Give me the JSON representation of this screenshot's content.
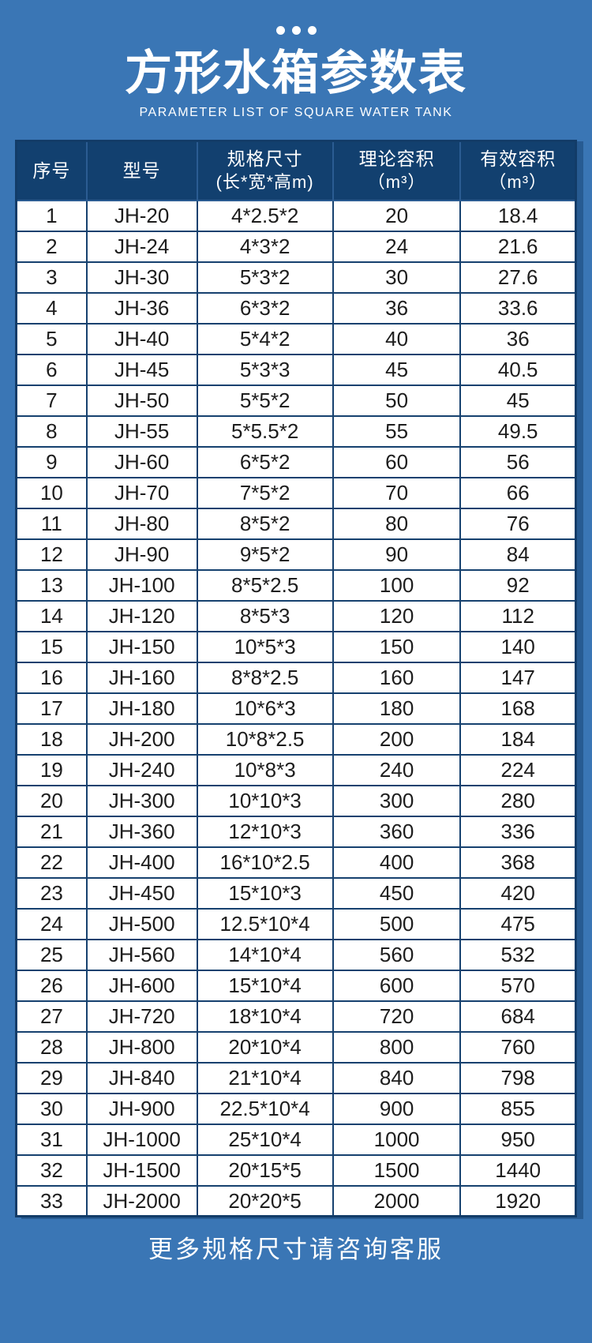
{
  "colors": {
    "page_bg": "#3a76b5",
    "table_header_bg": "#12406f",
    "grid_line": "#16416f",
    "header_grid_line": "#2b5c92",
    "outer_border": "#123c68",
    "cell_bg": "#ffffff",
    "text_light": "#ffffff",
    "text_dark": "#1d1d1d"
  },
  "header": {
    "dots_icon": "three-dots-icon",
    "title": "方形水箱参数表",
    "subtitle": "PARAMETER LIST OF SQUARE WATER TANK"
  },
  "table": {
    "columns": [
      {
        "label": "序号",
        "sub": ""
      },
      {
        "label": "型号",
        "sub": ""
      },
      {
        "label": "规格尺寸",
        "sub": "(长*宽*高m)"
      },
      {
        "label": "理论容积",
        "sub": "（m³）"
      },
      {
        "label": "有效容积",
        "sub": "（m³）"
      }
    ],
    "cell_names": [
      "cell-index",
      "cell-model",
      "cell-size",
      "cell-theoretical-volume",
      "cell-effective-volume"
    ],
    "rows": [
      [
        "1",
        "JH-20",
        "4*2.5*2",
        "20",
        "18.4"
      ],
      [
        "2",
        "JH-24",
        "4*3*2",
        "24",
        "21.6"
      ],
      [
        "3",
        "JH-30",
        "5*3*2",
        "30",
        "27.6"
      ],
      [
        "4",
        "JH-36",
        "6*3*2",
        "36",
        "33.6"
      ],
      [
        "5",
        "JH-40",
        "5*4*2",
        "40",
        "36"
      ],
      [
        "6",
        "JH-45",
        "5*3*3",
        "45",
        "40.5"
      ],
      [
        "7",
        "JH-50",
        "5*5*2",
        "50",
        "45"
      ],
      [
        "8",
        "JH-55",
        "5*5.5*2",
        "55",
        "49.5"
      ],
      [
        "9",
        "JH-60",
        "6*5*2",
        "60",
        "56"
      ],
      [
        "10",
        "JH-70",
        "7*5*2",
        "70",
        "66"
      ],
      [
        "11",
        "JH-80",
        "8*5*2",
        "80",
        "76"
      ],
      [
        "12",
        "JH-90",
        "9*5*2",
        "90",
        "84"
      ],
      [
        "13",
        "JH-100",
        "8*5*2.5",
        "100",
        "92"
      ],
      [
        "14",
        "JH-120",
        "8*5*3",
        "120",
        "112"
      ],
      [
        "15",
        "JH-150",
        "10*5*3",
        "150",
        "140"
      ],
      [
        "16",
        "JH-160",
        "8*8*2.5",
        "160",
        "147"
      ],
      [
        "17",
        "JH-180",
        "10*6*3",
        "180",
        "168"
      ],
      [
        "18",
        "JH-200",
        "10*8*2.5",
        "200",
        "184"
      ],
      [
        "19",
        "JH-240",
        "10*8*3",
        "240",
        "224"
      ],
      [
        "20",
        "JH-300",
        "10*10*3",
        "300",
        "280"
      ],
      [
        "21",
        "JH-360",
        "12*10*3",
        "360",
        "336"
      ],
      [
        "22",
        "JH-400",
        "16*10*2.5",
        "400",
        "368"
      ],
      [
        "23",
        "JH-450",
        "15*10*3",
        "450",
        "420"
      ],
      [
        "24",
        "JH-500",
        "12.5*10*4",
        "500",
        "475"
      ],
      [
        "25",
        "JH-560",
        "14*10*4",
        "560",
        "532"
      ],
      [
        "26",
        "JH-600",
        "15*10*4",
        "600",
        "570"
      ],
      [
        "27",
        "JH-720",
        "18*10*4",
        "720",
        "684"
      ],
      [
        "28",
        "JH-800",
        "20*10*4",
        "800",
        "760"
      ],
      [
        "29",
        "JH-840",
        "21*10*4",
        "840",
        "798"
      ],
      [
        "30",
        "JH-900",
        "22.5*10*4",
        "900",
        "855"
      ],
      [
        "31",
        "JH-1000",
        "25*10*4",
        "1000",
        "950"
      ],
      [
        "32",
        "JH-1500",
        "20*15*5",
        "1500",
        "1440"
      ],
      [
        "33",
        "JH-2000",
        "20*20*5",
        "2000",
        "1920"
      ]
    ]
  },
  "footer": {
    "note": "更多规格尺寸请咨询客服"
  }
}
